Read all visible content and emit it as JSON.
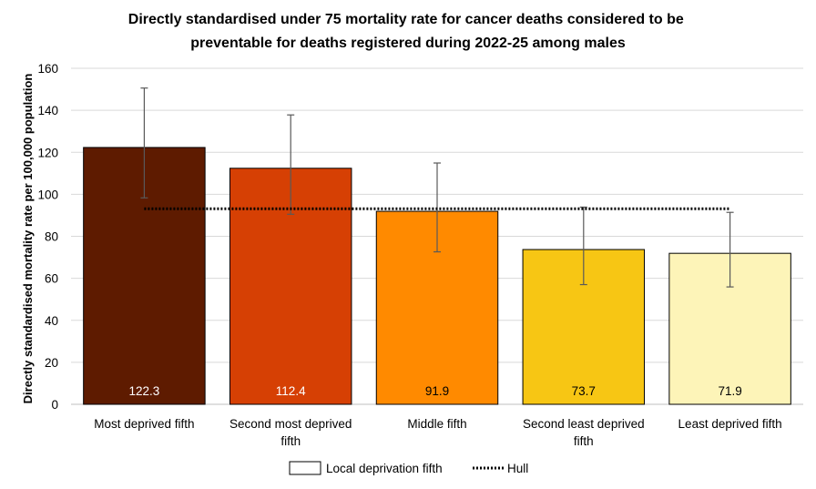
{
  "chart_data": {
    "type": "bar",
    "title_lines": [
      "Directly standardised under 75 mortality rate for cancer deaths considered to be",
      "preventable for deaths registered during 2022-25 among males"
    ],
    "ylabel": "Directly standardised mortality rate per 100,000 population",
    "xlabel": "",
    "ylim": [
      0,
      160
    ],
    "yticks": [
      "0",
      "20",
      "40",
      "60",
      "80",
      "100",
      "120",
      "140",
      "160"
    ],
    "grid": true,
    "legend_position": "bottom",
    "categories": [
      [
        "Most deprived fifth"
      ],
      [
        "Second most deprived",
        "fifth"
      ],
      [
        "Middle fifth"
      ],
      [
        "Second least deprived",
        "fifth"
      ],
      [
        "Least deprived fifth"
      ]
    ],
    "values": [
      122.3,
      112.4,
      91.9,
      73.7,
      71.9
    ],
    "value_labels": [
      "122.3",
      "112.4",
      "91.9",
      "73.7",
      "71.9"
    ],
    "error_bars": [
      {
        "low": 98.3,
        "high": 150.6
      },
      {
        "low": 90.5,
        "high": 137.8
      },
      {
        "low": 72.6,
        "high": 114.9
      },
      {
        "low": 57.0,
        "high": 93.9
      },
      {
        "low": 55.9,
        "high": 91.4
      }
    ],
    "reference_line": {
      "name": "Hull",
      "value": 93.1
    },
    "series_name": "Local deprivation fifth",
    "colors": [
      "#5e1b00",
      "#d64004",
      "#ff8a00",
      "#f7c614",
      "#fdf4b8"
    ],
    "label_colors": [
      "#ffffff",
      "#ffffff",
      "#000000",
      "#000000",
      "#000000"
    ]
  }
}
